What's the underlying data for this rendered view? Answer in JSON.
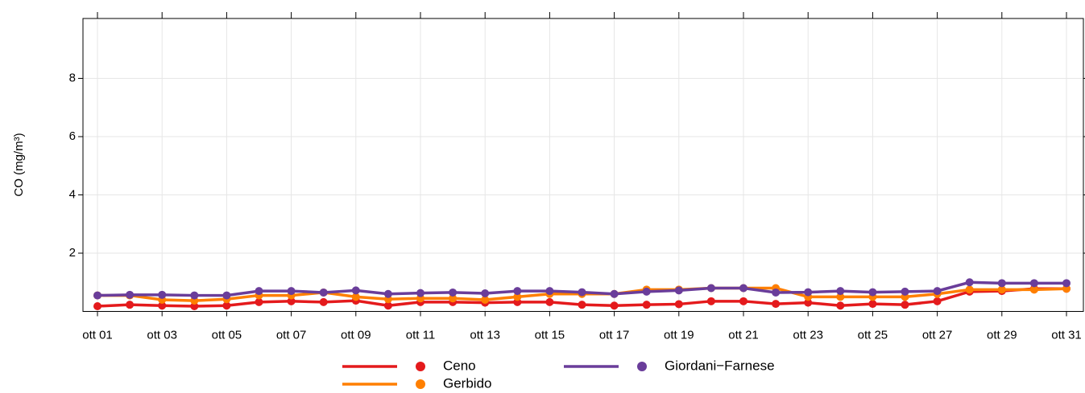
{
  "chart_data": {
    "type": "line",
    "y_label": "CO (mg/m³)",
    "categories": [
      "ott 01",
      null,
      "ott 03",
      null,
      "ott 05",
      null,
      "ott 07",
      null,
      "ott 09",
      null,
      "ott 11",
      null,
      "ott 13",
      null,
      "ott 15",
      null,
      "ott 17",
      null,
      "ott 19",
      null,
      "ott 21",
      null,
      "ott 23",
      null,
      "ott 25",
      null,
      "ott 27",
      null,
      "ott 29",
      null,
      "ott 31"
    ],
    "series": [
      {
        "name": "Ceno",
        "color": "#e41a1c",
        "values": [
          0.18,
          0.23,
          0.2,
          0.18,
          0.2,
          0.32,
          0.35,
          0.32,
          0.37,
          0.2,
          0.32,
          0.32,
          0.3,
          0.32,
          0.32,
          0.23,
          0.2,
          0.23,
          0.25,
          0.35,
          0.35,
          0.26,
          0.3,
          0.2,
          0.26,
          0.23,
          0.35,
          0.68,
          0.7,
          0.78,
          0.78
        ]
      },
      {
        "name": "Gerbido",
        "color": "#ff7f00",
        "values": [
          0.55,
          0.55,
          0.4,
          0.37,
          0.42,
          0.55,
          0.55,
          0.65,
          0.5,
          0.42,
          0.45,
          0.45,
          0.4,
          0.5,
          0.6,
          0.6,
          0.6,
          0.75,
          0.75,
          0.8,
          0.8,
          0.8,
          0.5,
          0.5,
          0.5,
          0.5,
          0.6,
          0.75,
          0.75,
          0.75,
          0.78
        ]
      },
      {
        "name": "Giordani−Farnese",
        "color": "#6a3d9a",
        "values": [
          0.55,
          0.57,
          0.57,
          0.55,
          0.55,
          0.7,
          0.7,
          0.65,
          0.72,
          0.6,
          0.63,
          0.65,
          0.62,
          0.7,
          0.7,
          0.66,
          0.6,
          0.68,
          0.72,
          0.8,
          0.8,
          0.65,
          0.66,
          0.7,
          0.66,
          0.68,
          0.7,
          1.0,
          0.97,
          0.97,
          0.97
        ]
      }
    ],
    "ylim": [
      0,
      10
    ],
    "yticks": [
      2,
      4,
      6,
      8
    ],
    "grid": true
  }
}
